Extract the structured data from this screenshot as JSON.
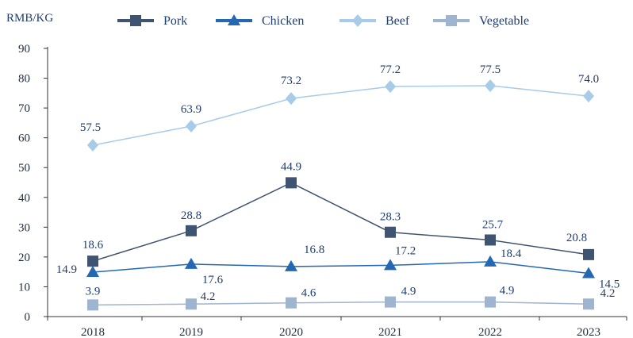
{
  "chart_data": {
    "type": "line",
    "ylabel": "RMB/KG",
    "ylim": [
      0,
      90
    ],
    "yticks": [
      0,
      10,
      20,
      30,
      40,
      50,
      60,
      70,
      80,
      90
    ],
    "categories": [
      "2018",
      "2019",
      "2020",
      "2021",
      "2022",
      "2023"
    ],
    "legend_position": "top",
    "grid": false,
    "series": [
      {
        "name": "Pork",
        "values": [
          18.6,
          28.8,
          44.9,
          28.3,
          25.7,
          20.8
        ],
        "labels": [
          "18.6",
          "28.8",
          "44.9",
          "28.3",
          "25.7",
          "20.8"
        ],
        "color": "#3f5470",
        "marker": "square"
      },
      {
        "name": "Chicken",
        "values": [
          14.9,
          17.6,
          16.8,
          17.2,
          18.4,
          14.5
        ],
        "labels": [
          "14.9",
          "17.6",
          "16.8",
          "17.2",
          "18.4",
          "14.5"
        ],
        "color": "#2468b4",
        "marker": "triangle"
      },
      {
        "name": "Beef",
        "values": [
          57.5,
          63.9,
          73.2,
          77.2,
          77.5,
          74.0
        ],
        "labels": [
          "57.5",
          "63.9",
          "73.2",
          "77.2",
          "77.5",
          "74.0"
        ],
        "color": "#a7cbe8",
        "marker": "diamond"
      },
      {
        "name": "Vegetable",
        "values": [
          3.9,
          4.2,
          4.6,
          4.9,
          4.9,
          4.2
        ],
        "labels": [
          "3.9",
          "4.2",
          "4.6",
          "4.9",
          "4.9",
          "4.2"
        ],
        "color": "#9fb4cf",
        "marker": "square"
      }
    ]
  }
}
